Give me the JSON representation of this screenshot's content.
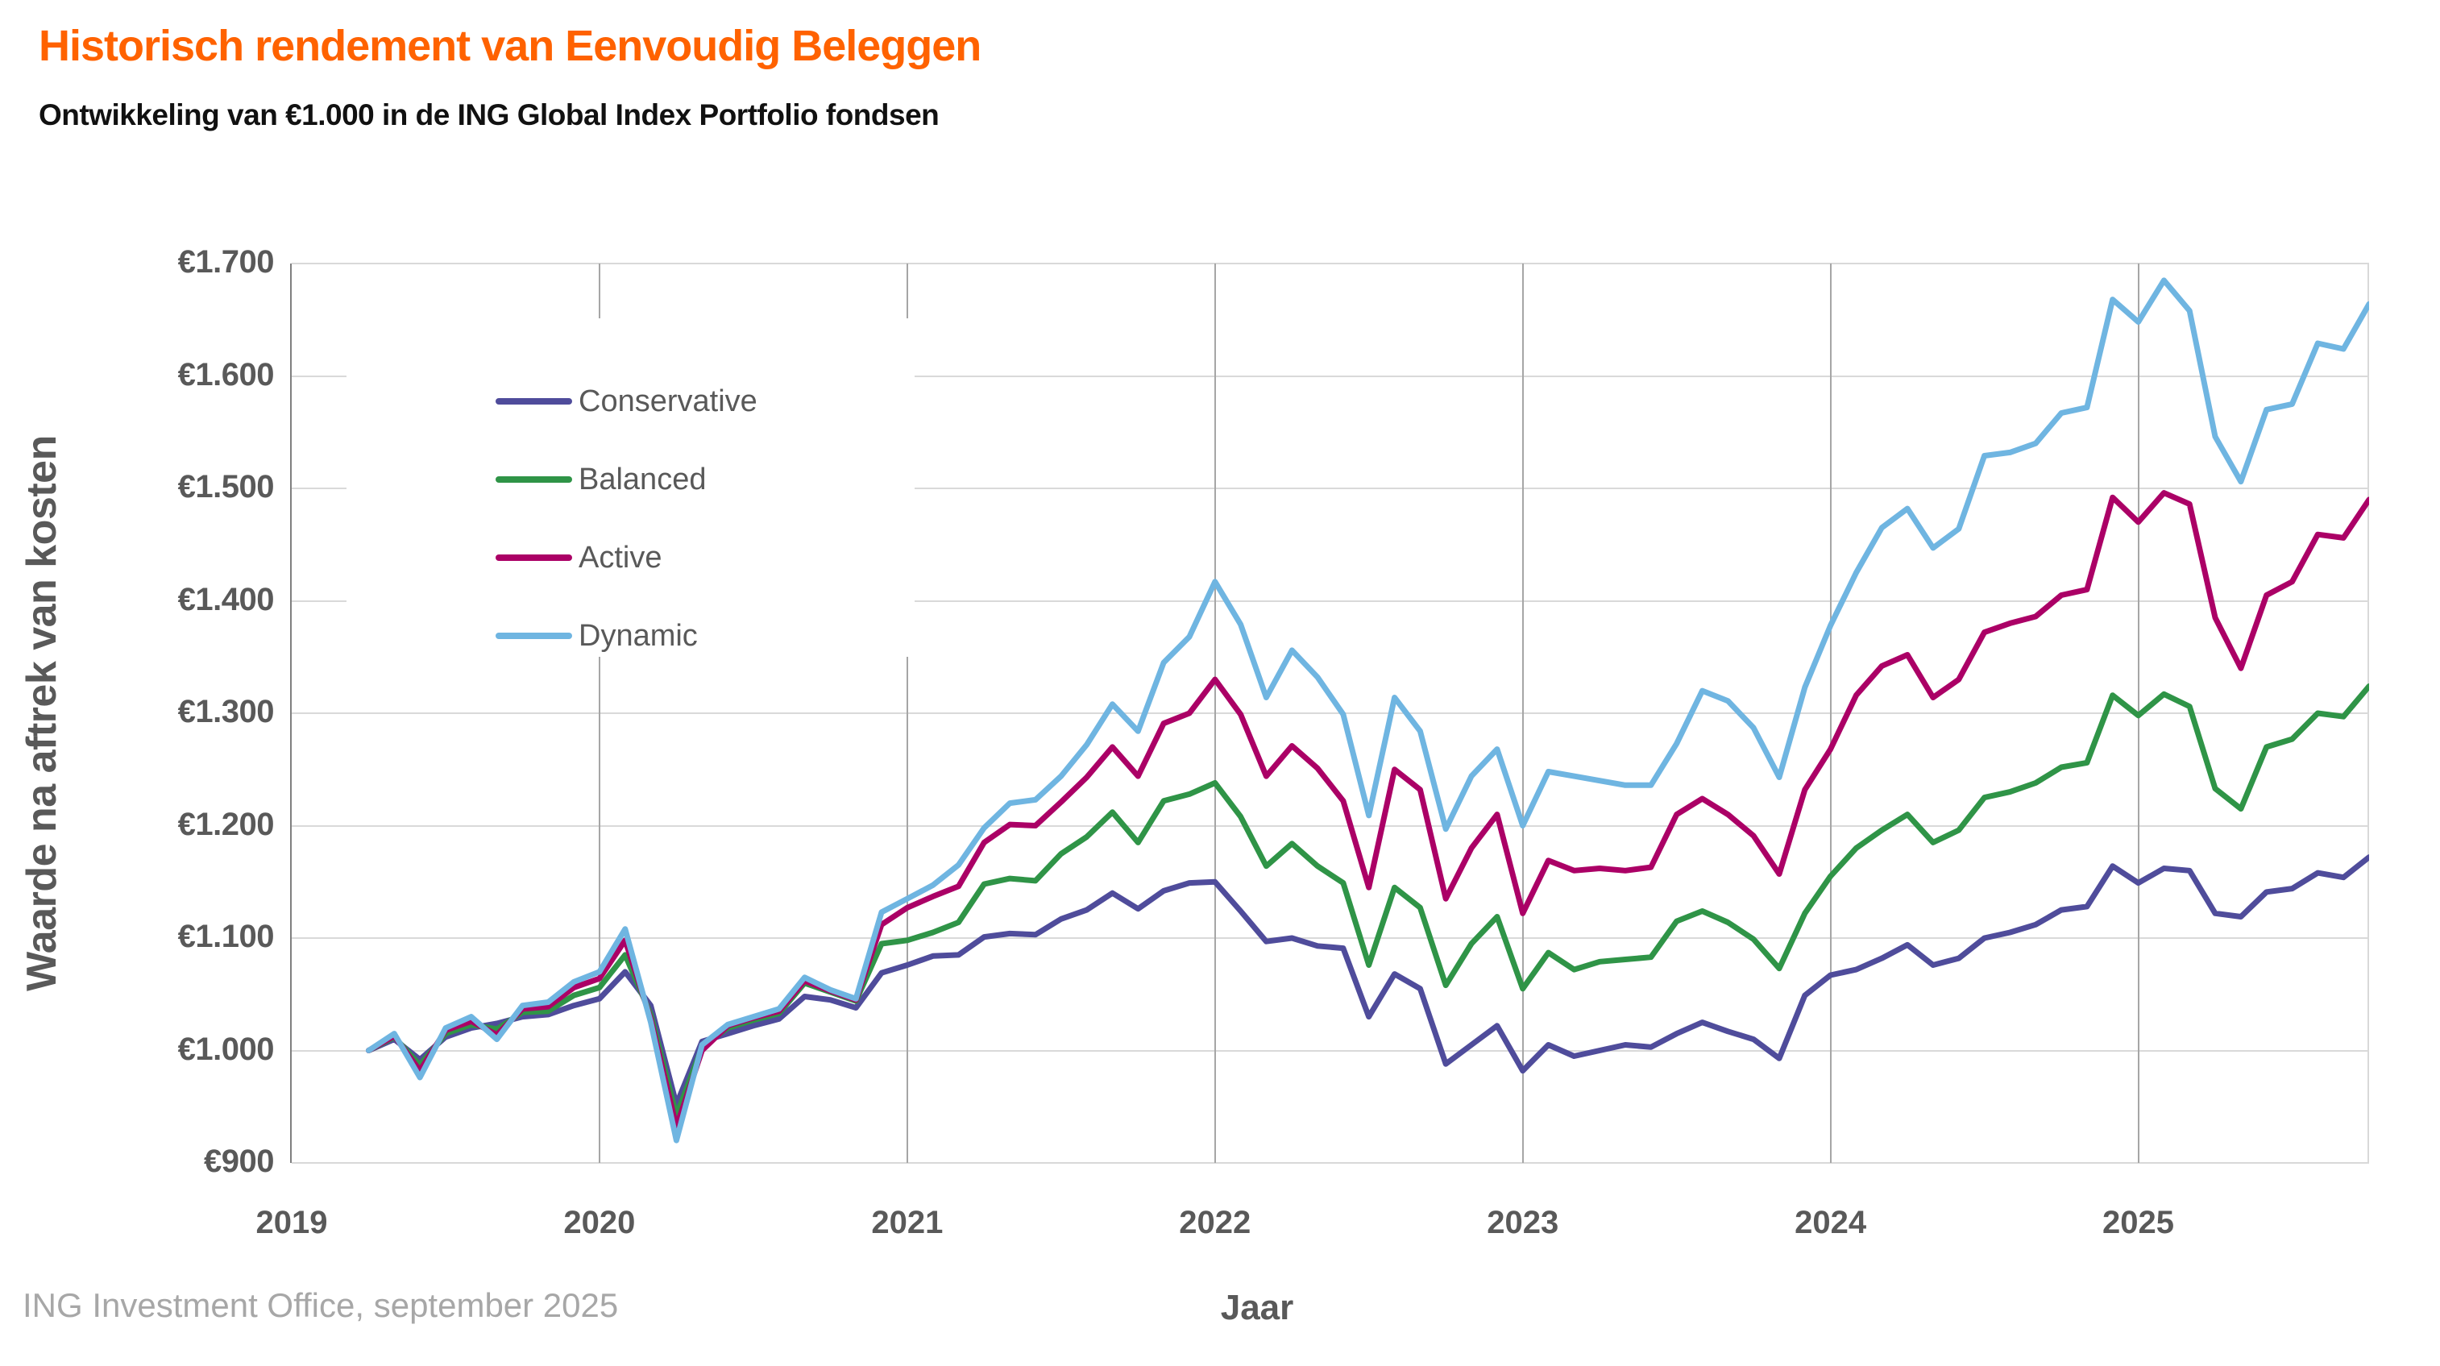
{
  "title": "Historisch rendement van Eenvoudig Beleggen",
  "subtitle": "Ontwikkeling van €1.000 in de ING Global Index Portfolio fondsen",
  "source": "ING Investment Office, september 2025",
  "colors": {
    "title_accent": "#FF6200",
    "axis_text": "#595959",
    "footer_text": "#A7A7A7",
    "hgrid": "#D9D9D9",
    "vgrid": "#A6A6A6"
  },
  "chart_data": {
    "type": "line",
    "title": "Historisch rendement van Eenvoudig Beleggen",
    "subtitle": "Ontwikkeling van €1.000 in de ING Global Index Portfolio fondsen",
    "xlabel": "Jaar",
    "ylabel": "Waarde na aftrek van kosten",
    "ylim": [
      900,
      1700
    ],
    "ytick_step": 100,
    "ytick_labels": [
      "€900",
      "€1.000",
      "€1.100",
      "€1.200",
      "€1.300",
      "€1.400",
      "€1.500",
      "€1.600",
      "€1.700"
    ],
    "xtick_labels": [
      "2019",
      "2020",
      "2021",
      "2022",
      "2023",
      "2024",
      "2025"
    ],
    "x_start_month": "2019-03",
    "x_end_month": "2025-09",
    "frequency": "monthly",
    "axis_span_months": 81,
    "first_point_month_offset": 3,
    "grid": true,
    "legend_position": "upper-left-inside",
    "series": [
      {
        "name": "Conservative",
        "color": "#4F4C9B",
        "values": [
          1000,
          1010,
          992,
          1012,
          1020,
          1024,
          1030,
          1032,
          1040,
          1046,
          1070,
          1040,
          952,
          1008,
          1015,
          1022,
          1028,
          1048,
          1045,
          1038,
          1069,
          1076,
          1084,
          1085,
          1101,
          1104,
          1103,
          1117,
          1125,
          1140,
          1126,
          1142,
          1149,
          1150,
          1124,
          1097,
          1100,
          1093,
          1091,
          1030,
          1068,
          1055,
          988,
          1005,
          1022,
          982,
          1005,
          995,
          1000,
          1005,
          1003,
          1015,
          1025,
          1017,
          1010,
          993,
          1049,
          1067,
          1072,
          1082,
          1094,
          1076,
          1082,
          1100,
          1105,
          1112,
          1125,
          1128,
          1164,
          1149,
          1162,
          1160,
          1122,
          1119,
          1141,
          1144,
          1158,
          1154,
          1172
        ]
      },
      {
        "name": "Balanced",
        "color": "#2F9447",
        "values": [
          1000,
          1012,
          987,
          1015,
          1023,
          1019,
          1034,
          1035,
          1049,
          1056,
          1085,
          1032,
          942,
          1003,
          1020,
          1027,
          1033,
          1060,
          1052,
          1044,
          1095,
          1098,
          1105,
          1114,
          1148,
          1153,
          1151,
          1175,
          1190,
          1212,
          1185,
          1222,
          1228,
          1238,
          1208,
          1164,
          1184,
          1164,
          1149,
          1076,
          1145,
          1127,
          1058,
          1095,
          1119,
          1055,
          1087,
          1072,
          1079,
          1081,
          1083,
          1115,
          1124,
          1114,
          1099,
          1073,
          1122,
          1155,
          1180,
          1196,
          1210,
          1185,
          1196,
          1225,
          1230,
          1238,
          1252,
          1256,
          1316,
          1298,
          1317,
          1306,
          1233,
          1215,
          1270,
          1277,
          1300,
          1297,
          1324
        ]
      },
      {
        "name": "Active",
        "color": "#AB0066",
        "values": [
          1000,
          1013,
          982,
          1018,
          1026,
          1014,
          1037,
          1039,
          1056,
          1064,
          1098,
          1028,
          932,
          1000,
          1022,
          1029,
          1035,
          1062,
          1053,
          1045,
          1112,
          1127,
          1137,
          1146,
          1185,
          1201,
          1200,
          1221,
          1243,
          1270,
          1244,
          1291,
          1300,
          1330,
          1299,
          1244,
          1271,
          1251,
          1222,
          1145,
          1250,
          1232,
          1135,
          1180,
          1210,
          1122,
          1169,
          1160,
          1162,
          1160,
          1163,
          1210,
          1224,
          1210,
          1191,
          1157,
          1232,
          1268,
          1316,
          1342,
          1352,
          1314,
          1330,
          1372,
          1380,
          1386,
          1405,
          1410,
          1492,
          1470,
          1496,
          1486,
          1385,
          1340,
          1405,
          1417,
          1459,
          1456,
          1490
        ]
      },
      {
        "name": "Dynamic",
        "color": "#6FB5E1",
        "values": [
          1000,
          1015,
          976,
          1020,
          1030,
          1010,
          1040,
          1043,
          1061,
          1070,
          1108,
          1025,
          920,
          1005,
          1023,
          1030,
          1037,
          1065,
          1054,
          1046,
          1123,
          1135,
          1147,
          1165,
          1198,
          1220,
          1223,
          1244,
          1272,
          1308,
          1284,
          1345,
          1368,
          1417,
          1379,
          1314,
          1356,
          1332,
          1299,
          1209,
          1314,
          1284,
          1197,
          1244,
          1268,
          1200,
          1248,
          1244,
          1240,
          1236,
          1236,
          1273,
          1320,
          1311,
          1287,
          1243,
          1323,
          1378,
          1425,
          1465,
          1482,
          1447,
          1464,
          1529,
          1532,
          1540,
          1567,
          1572,
          1668,
          1648,
          1685,
          1658,
          1546,
          1506,
          1570,
          1575,
          1629,
          1624,
          1664
        ]
      }
    ]
  }
}
